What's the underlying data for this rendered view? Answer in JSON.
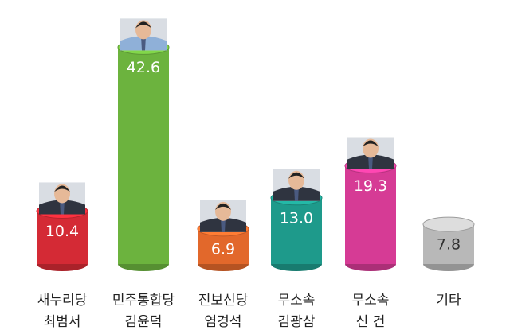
{
  "chart_data": {
    "type": "bar",
    "categories": [
      [
        "새누리당",
        "최범서"
      ],
      [
        "민주통합당",
        "김윤덕"
      ],
      [
        "진보신당",
        "염경석"
      ],
      [
        "무소속",
        "김광삼"
      ],
      [
        "무소속",
        "신 건"
      ],
      [
        "기타"
      ]
    ],
    "values": [
      10.4,
      42.6,
      6.9,
      13.0,
      19.3,
      7.8
    ],
    "value_labels": [
      "10.4",
      "42.6",
      "6.9",
      "13.0",
      "19.3",
      "7.8"
    ],
    "colors": [
      "#d42a35",
      "#6cb33e",
      "#e2682b",
      "#1e9a8b",
      "#d63b95",
      "#b8b8b8"
    ]
  }
}
